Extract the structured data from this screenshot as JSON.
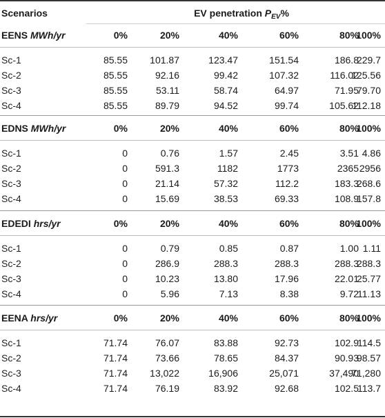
{
  "header": {
    "col0": "Scenarios",
    "span_prefix": "EV penetration ",
    "span_var": "P",
    "span_sub": "EV",
    "span_suffix": "%"
  },
  "columns": [
    "0%",
    "20%",
    "40%",
    "60%",
    "80%",
    "100%"
  ],
  "sections": [
    {
      "metric": "EENS",
      "unit": "MWh/yr",
      "rows": [
        {
          "label": "Sc-1",
          "values": [
            "85.55",
            "101.87",
            "123.47",
            "151.54",
            "186.8",
            "229.7"
          ]
        },
        {
          "label": "Sc-2",
          "values": [
            "85.55",
            "92.16",
            "99.42",
            "107.32",
            "116.02",
            "125.56"
          ]
        },
        {
          "label": "Sc-3",
          "values": [
            "85.55",
            "53.11",
            "58.74",
            "64.97",
            "71.95",
            "79.70"
          ]
        },
        {
          "label": "Sc-4",
          "values": [
            "85.55",
            "89.79",
            "94.52",
            "99.74",
            "105.62",
            "112.18"
          ]
        }
      ]
    },
    {
      "metric": "EDNS",
      "unit": "MWh/yr",
      "rows": [
        {
          "label": "Sc-1",
          "values": [
            "0",
            "0.76",
            "1.57",
            "2.45",
            "3.51",
            "4.86"
          ]
        },
        {
          "label": "Sc-2",
          "values": [
            "0",
            "591.3",
            "1182",
            "1773",
            "2365",
            "2956"
          ]
        },
        {
          "label": "Sc-3",
          "values": [
            "0",
            "21.14",
            "57.32",
            "112.2",
            "183.3",
            "268.6"
          ]
        },
        {
          "label": "Sc-4",
          "values": [
            "0",
            "15.69",
            "38.53",
            "69.33",
            "108.9",
            "157.8"
          ]
        }
      ]
    },
    {
      "metric": "EDEDI",
      "unit": "hrs/yr",
      "rows": [
        {
          "label": "Sc-1",
          "values": [
            "0",
            "0.79",
            "0.85",
            "0.87",
            "1.00",
            "1.11"
          ]
        },
        {
          "label": "Sc-2",
          "values": [
            "0",
            "286.9",
            "288.3",
            "288.3",
            "288.3",
            "288.3"
          ]
        },
        {
          "label": "Sc-3",
          "values": [
            "0",
            "10.23",
            "13.80",
            "17.96",
            "22.01",
            "25.77"
          ]
        },
        {
          "label": "Sc-4",
          "values": [
            "0",
            "5.96",
            "7.13",
            "8.38",
            "9.72",
            "11.13"
          ]
        }
      ]
    },
    {
      "metric": "EENA",
      "unit": "hrs/yr",
      "rows": [
        {
          "label": "Sc-1",
          "values": [
            "71.74",
            "76.07",
            "83.88",
            "92.73",
            "102.9",
            "114.5"
          ]
        },
        {
          "label": "Sc-2",
          "values": [
            "71.74",
            "73.66",
            "78.65",
            "84.37",
            "90.93",
            "98.57"
          ]
        },
        {
          "label": "Sc-3",
          "values": [
            "71.74",
            "13,022",
            "16,906",
            "25,071",
            "37,490",
            "71,280"
          ]
        },
        {
          "label": "Sc-4",
          "values": [
            "71.74",
            "76.19",
            "83.92",
            "92.68",
            "102.5",
            "113.7"
          ]
        }
      ]
    }
  ]
}
